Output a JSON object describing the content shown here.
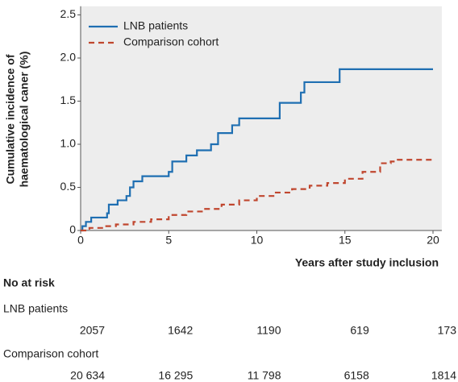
{
  "chart_data": {
    "type": "line",
    "step": true,
    "ylabel": [
      "Cumulative incidence of",
      "haematological caner (%)"
    ],
    "xlabel": "Years after study inclusion",
    "xlim": [
      0,
      20.5
    ],
    "ylim": [
      0,
      2.6
    ],
    "xticks": [
      0,
      5,
      10,
      15,
      20
    ],
    "yticks": [
      0,
      0.5,
      {
        "value": 1,
        "label": "1.0"
      },
      1.5,
      {
        "value": 2,
        "label": "2.0"
      },
      2.5
    ],
    "legend": "upper left",
    "series": [
      {
        "name": "LNB patients",
        "color": "#1f6fb2",
        "dash": false,
        "x": [
          0,
          0.1,
          0.3,
          0.6,
          1.5,
          1.6,
          2.1,
          2.6,
          2.8,
          3.0,
          3.5,
          5.0,
          5.2,
          6.0,
          6.6,
          7.4,
          7.8,
          8.6,
          9.0,
          11.3,
          12.5,
          12.7,
          14.7,
          20
        ],
        "values": [
          0,
          0.05,
          0.1,
          0.15,
          0.2,
          0.3,
          0.35,
          0.4,
          0.5,
          0.57,
          0.63,
          0.68,
          0.8,
          0.87,
          0.93,
          1.0,
          1.13,
          1.22,
          1.3,
          1.48,
          1.6,
          1.72,
          1.87,
          1.87
        ]
      },
      {
        "name": "Comparison cohort",
        "color": "#c0462e",
        "dash": true,
        "x": [
          0,
          0.5,
          1.3,
          2,
          3,
          4,
          5,
          6,
          7,
          8,
          9,
          10,
          11,
          12,
          13,
          14,
          15,
          16,
          17,
          17.6,
          18,
          20
        ],
        "values": [
          0,
          0.03,
          0.05,
          0.07,
          0.1,
          0.13,
          0.18,
          0.22,
          0.25,
          0.3,
          0.35,
          0.4,
          0.44,
          0.48,
          0.52,
          0.55,
          0.6,
          0.68,
          0.78,
          0.8,
          0.82,
          0.82
        ]
      }
    ],
    "at_risk": {
      "title": "No at risk",
      "rows": [
        {
          "name": "LNB patients",
          "values": [
            "2057",
            "1642",
            "1190",
            "619",
            "173"
          ]
        },
        {
          "name": "Comparison cohort",
          "values": [
            "20 634",
            "16 295",
            "11 798",
            "6158",
            "1814"
          ]
        }
      ]
    }
  }
}
